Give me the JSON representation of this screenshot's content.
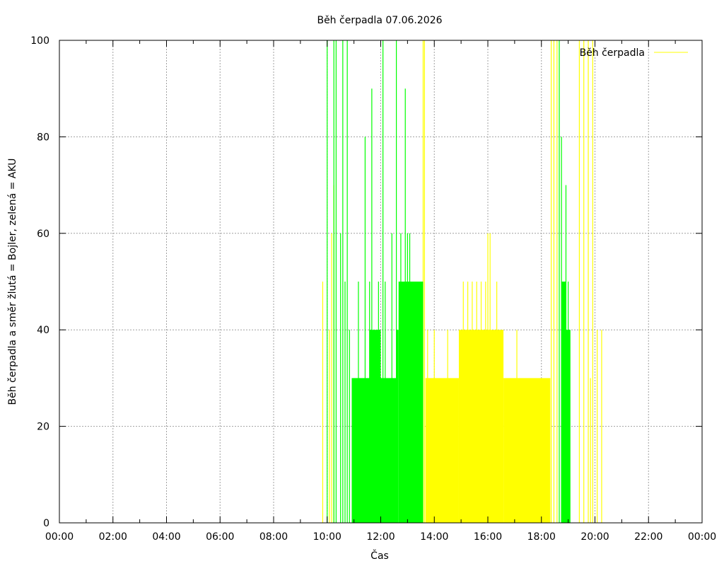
{
  "chart_data": {
    "type": "area",
    "title": "Běh čerpadla 07.06.2026",
    "xlabel": "Čas",
    "ylabel": "Běh čerpadla a směr žlutá = Bojler, zelená = AKU",
    "xlim": [
      "00:00",
      "24:00"
    ],
    "ylim": [
      0,
      100
    ],
    "x_ticks": [
      "00:00",
      "02:00",
      "04:00",
      "06:00",
      "08:00",
      "10:00",
      "12:00",
      "14:00",
      "16:00",
      "18:00",
      "20:00",
      "22:00",
      "00:00"
    ],
    "y_ticks": [
      0,
      20,
      40,
      60,
      80,
      100
    ],
    "grid": true,
    "legend_position": "top-right",
    "legend_entries": [
      {
        "name": "Běh čerpadla",
        "color": "#ffff00"
      }
    ],
    "series": [
      {
        "name": "Běh čerpadla",
        "color": "#ffff00",
        "direction": "Bojler",
        "filled_segments": [
          {
            "start": "13:40",
            "end": "14:55",
            "value": 30
          },
          {
            "start": "14:55",
            "end": "16:35",
            "value": 40
          },
          {
            "start": "16:35",
            "end": "18:20",
            "value": 30
          }
        ],
        "spikes": [
          {
            "time": "09:50",
            "value": 50
          },
          {
            "time": "10:05",
            "value": 40
          },
          {
            "time": "10:10",
            "value": 60
          },
          {
            "time": "10:15",
            "value": 70
          },
          {
            "time": "13:35",
            "value": 100
          },
          {
            "time": "13:38",
            "value": 100
          },
          {
            "time": "13:45",
            "value": 40
          },
          {
            "time": "14:00",
            "value": 40
          },
          {
            "time": "14:30",
            "value": 40
          },
          {
            "time": "15:05",
            "value": 50
          },
          {
            "time": "15:15",
            "value": 50
          },
          {
            "time": "15:25",
            "value": 50
          },
          {
            "time": "15:35",
            "value": 50
          },
          {
            "time": "15:45",
            "value": 50
          },
          {
            "time": "15:55",
            "value": 50
          },
          {
            "time": "16:00",
            "value": 60
          },
          {
            "time": "16:05",
            "value": 60
          },
          {
            "time": "16:20",
            "value": 50
          },
          {
            "time": "17:05",
            "value": 40
          },
          {
            "time": "18:22",
            "value": 100
          },
          {
            "time": "18:28",
            "value": 100
          },
          {
            "time": "18:35",
            "value": 100
          },
          {
            "time": "19:25",
            "value": 100
          },
          {
            "time": "19:35",
            "value": 100
          },
          {
            "time": "19:45",
            "value": 100
          },
          {
            "time": "19:50",
            "value": 30
          },
          {
            "time": "19:55",
            "value": 100
          },
          {
            "time": "20:05",
            "value": 40
          },
          {
            "time": "20:15",
            "value": 40
          }
        ]
      },
      {
        "name": "",
        "color": "#00ff00",
        "direction": "AKU",
        "filled_segments": [
          {
            "start": "10:55",
            "end": "11:35",
            "value": 30
          },
          {
            "start": "11:35",
            "end": "12:00",
            "value": 40
          },
          {
            "start": "12:00",
            "end": "12:35",
            "value": 30
          },
          {
            "start": "12:35",
            "end": "12:40",
            "value": 40
          },
          {
            "start": "12:40",
            "end": "13:35",
            "value": 50
          },
          {
            "start": "18:45",
            "end": "18:55",
            "value": 50
          },
          {
            "start": "18:55",
            "end": "19:05",
            "value": 40
          }
        ],
        "spikes": [
          {
            "time": "10:00",
            "value": 100
          },
          {
            "time": "10:15",
            "value": 100
          },
          {
            "time": "10:20",
            "value": 100
          },
          {
            "time": "10:30",
            "value": 60
          },
          {
            "time": "10:35",
            "value": 100
          },
          {
            "time": "10:40",
            "value": 50
          },
          {
            "time": "10:45",
            "value": 100
          },
          {
            "time": "10:50",
            "value": 40
          },
          {
            "time": "11:10",
            "value": 50
          },
          {
            "time": "11:25",
            "value": 80
          },
          {
            "time": "11:35",
            "value": 50
          },
          {
            "time": "11:40",
            "value": 90
          },
          {
            "time": "11:55",
            "value": 50
          },
          {
            "time": "12:05",
            "value": 100
          },
          {
            "time": "12:10",
            "value": 50
          },
          {
            "time": "12:25",
            "value": 60
          },
          {
            "time": "12:35",
            "value": 100
          },
          {
            "time": "12:45",
            "value": 60
          },
          {
            "time": "12:55",
            "value": 90
          },
          {
            "time": "13:00",
            "value": 60
          },
          {
            "time": "13:05",
            "value": 60
          },
          {
            "time": "18:40",
            "value": 100
          },
          {
            "time": "18:45",
            "value": 80
          },
          {
            "time": "18:55",
            "value": 70
          },
          {
            "time": "19:00",
            "value": 50
          }
        ]
      }
    ]
  }
}
